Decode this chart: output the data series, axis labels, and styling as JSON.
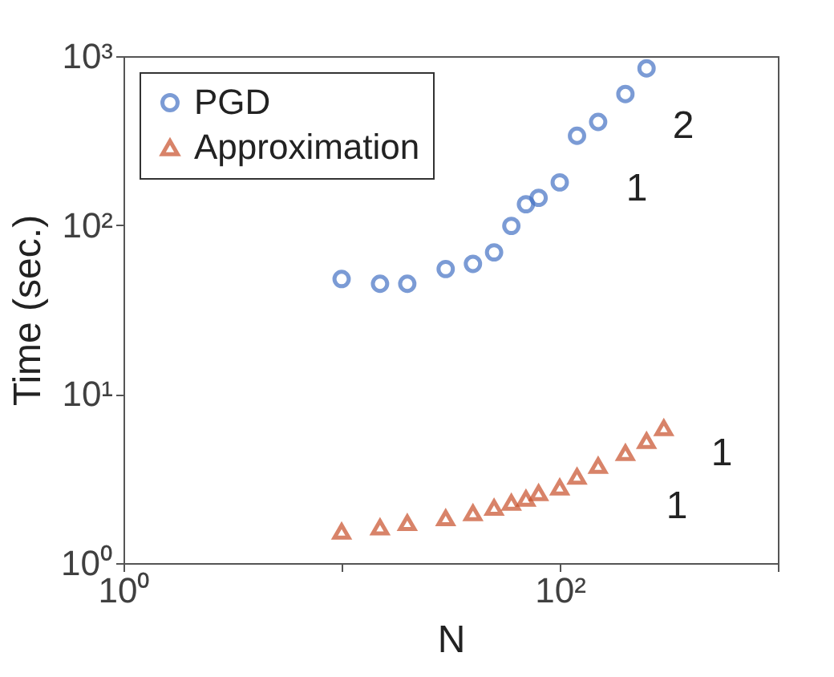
{
  "chart_data": {
    "type": "scatter",
    "xlabel": "N",
    "ylabel": "Time (sec.)",
    "log": "xy",
    "grid": false,
    "legend": "top left",
    "xlim": [
      1,
      1000
    ],
    "xticks": [
      {
        "value": 1,
        "label": "10⁰"
      },
      {
        "value": 10,
        "label": null
      },
      {
        "value": 100,
        "label": "10²"
      },
      {
        "value": 1000,
        "label": null
      }
    ],
    "ylim": [
      1,
      1000
    ],
    "yticks": [
      {
        "value": 1,
        "label": "10⁰"
      },
      {
        "value": 10,
        "label": "10¹"
      },
      {
        "value": 100,
        "label": "10²"
      },
      {
        "value": 1000,
        "label": "10³"
      }
    ],
    "series": [
      {
        "name": "PGD",
        "color": "#4472c4",
        "marker": "circle",
        "x": [
          10,
          15,
          20,
          30,
          40,
          50,
          60,
          70,
          80,
          100,
          120,
          150,
          200,
          250
        ],
        "values": [
          48,
          45,
          45,
          55,
          59,
          69,
          99,
          133,
          145,
          179,
          338,
          408,
          597,
          847
        ]
      },
      {
        "name": "Approximation",
        "color": "#c8502a",
        "marker": "triangle",
        "x": [
          10,
          15,
          20,
          30,
          40,
          50,
          60,
          70,
          80,
          100,
          120,
          150,
          200,
          250,
          300
        ],
        "values": [
          1.54,
          1.63,
          1.73,
          1.85,
          1.98,
          2.13,
          2.28,
          2.41,
          2.6,
          2.81,
          3.26,
          3.77,
          4.49,
          5.3,
          6.3
        ]
      }
    ],
    "annotations": [
      "2",
      "1",
      "1",
      "1"
    ]
  }
}
